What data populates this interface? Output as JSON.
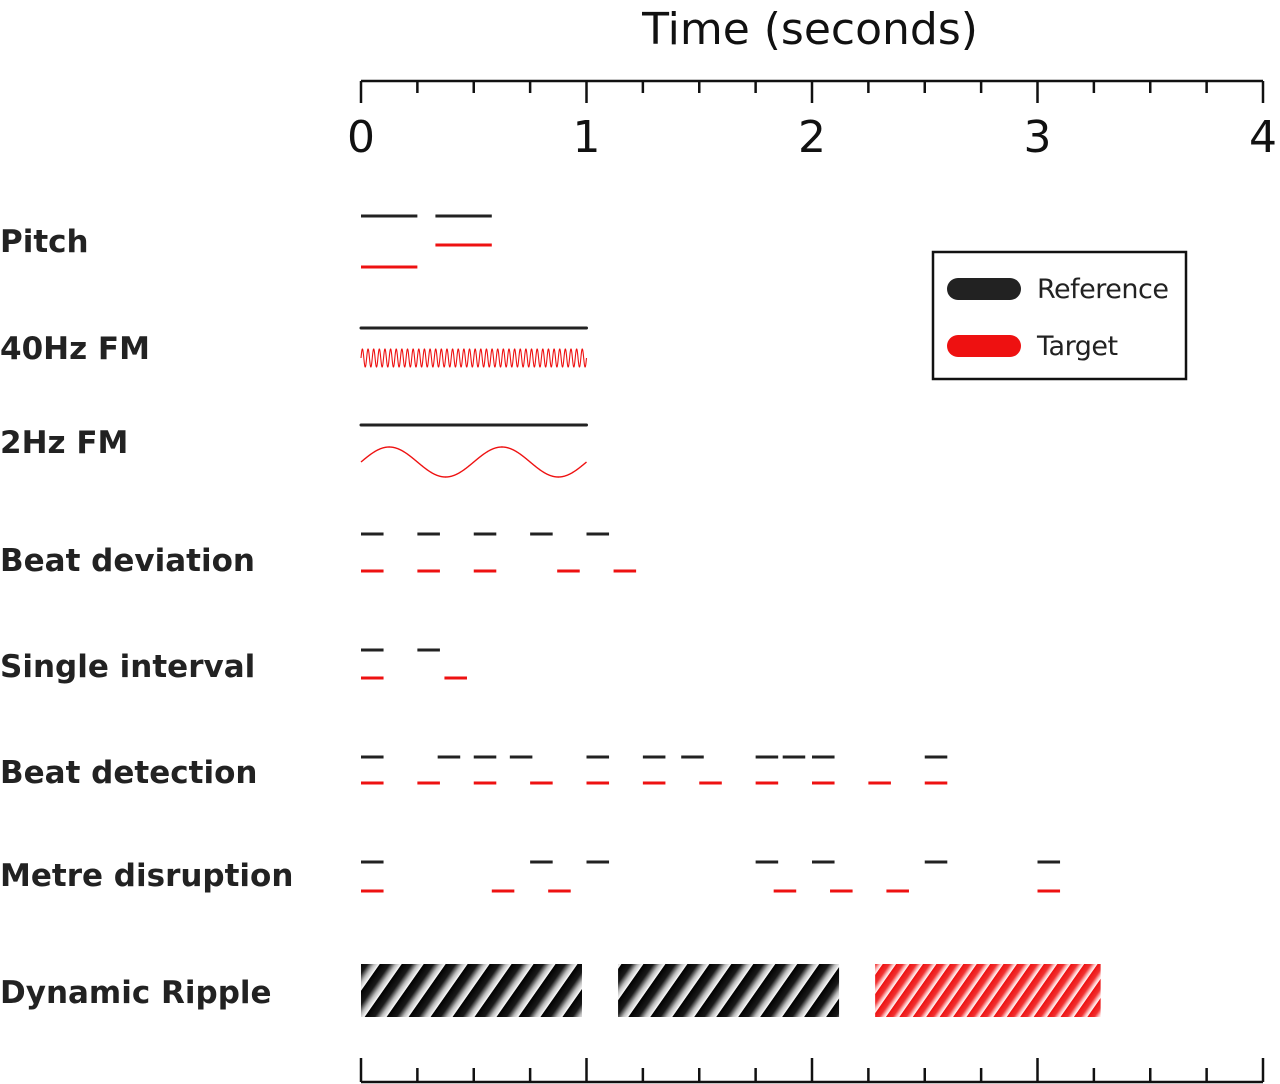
{
  "axis": {
    "title": "Time (seconds)",
    "ticks": [
      "0",
      "1",
      "2",
      "3",
      "4"
    ],
    "range": [
      0,
      4
    ],
    "minor_step": 0.25
  },
  "legend": {
    "reference": "Reference",
    "target": "Target"
  },
  "colors": {
    "reference": "#222222",
    "target": "#ee1111",
    "axis": "#111111"
  },
  "rows": [
    {
      "id": "pitch",
      "label": "Pitch",
      "reference": [
        [
          0,
          0.25
        ],
        [
          0.33,
          0.58
        ]
      ],
      "target": [
        [
          0,
          0.25
        ],
        [
          0.33,
          0.58
        ]
      ]
    },
    {
      "id": "fm40",
      "label": "40Hz FM",
      "reference": [
        [
          0,
          1
        ]
      ],
      "target": [
        [
          0,
          1
        ]
      ],
      "target_modulation_hz": 40
    },
    {
      "id": "fm2",
      "label": "2Hz FM",
      "reference": [
        [
          0,
          1
        ]
      ],
      "target": [
        [
          0,
          1
        ]
      ],
      "target_modulation_hz": 2
    },
    {
      "id": "beat-deviation",
      "label": "Beat deviation",
      "reference": [
        [
          0,
          0.1
        ],
        [
          0.25,
          0.35
        ],
        [
          0.5,
          0.6
        ],
        [
          0.75,
          0.85
        ],
        [
          1.0,
          1.1
        ]
      ],
      "target": [
        [
          0,
          0.1
        ],
        [
          0.25,
          0.35
        ],
        [
          0.5,
          0.6
        ],
        [
          0.87,
          0.97
        ],
        [
          1.12,
          1.22
        ]
      ]
    },
    {
      "id": "single-interval",
      "label": "Single interval",
      "reference": [
        [
          0,
          0.1
        ],
        [
          0.25,
          0.35
        ]
      ],
      "target": [
        [
          0,
          0.1
        ],
        [
          0.37,
          0.47
        ]
      ]
    },
    {
      "id": "beat-detection",
      "label": "Beat detection",
      "reference": [
        [
          0,
          0.1
        ],
        [
          0.34,
          0.44
        ],
        [
          0.5,
          0.6
        ],
        [
          0.66,
          0.76
        ],
        [
          1.0,
          1.1
        ],
        [
          1.25,
          1.35
        ],
        [
          1.42,
          1.52
        ],
        [
          1.75,
          1.85
        ],
        [
          1.87,
          1.97
        ],
        [
          2.0,
          2.1
        ],
        [
          2.5,
          2.6
        ]
      ],
      "target": [
        [
          0,
          0.1
        ],
        [
          0.25,
          0.35
        ],
        [
          0.5,
          0.6
        ],
        [
          0.75,
          0.85
        ],
        [
          1.0,
          1.1
        ],
        [
          1.25,
          1.35
        ],
        [
          1.5,
          1.6
        ],
        [
          1.75,
          1.85
        ],
        [
          2.0,
          2.1
        ],
        [
          2.25,
          2.35
        ],
        [
          2.5,
          2.6
        ]
      ]
    },
    {
      "id": "metre-disruption",
      "label": "Metre disruption",
      "reference": [
        [
          0,
          0.1
        ],
        [
          0.75,
          0.85
        ],
        [
          1.0,
          1.1
        ],
        [
          1.75,
          1.85
        ],
        [
          2.0,
          2.1
        ],
        [
          2.5,
          2.6
        ],
        [
          3.0,
          3.1
        ]
      ],
      "target": [
        [
          0,
          0.1
        ],
        [
          0.58,
          0.68
        ],
        [
          0.83,
          0.93
        ],
        [
          1.83,
          1.93
        ],
        [
          2.08,
          2.18
        ],
        [
          2.33,
          2.43
        ],
        [
          3.0,
          3.1
        ]
      ]
    },
    {
      "id": "dynamic-ripple",
      "label": "Dynamic Ripple",
      "reference": [
        [
          0,
          0.98
        ],
        [
          1.14,
          2.12
        ]
      ],
      "target": [
        [
          2.28,
          3.28
        ]
      ]
    }
  ]
}
